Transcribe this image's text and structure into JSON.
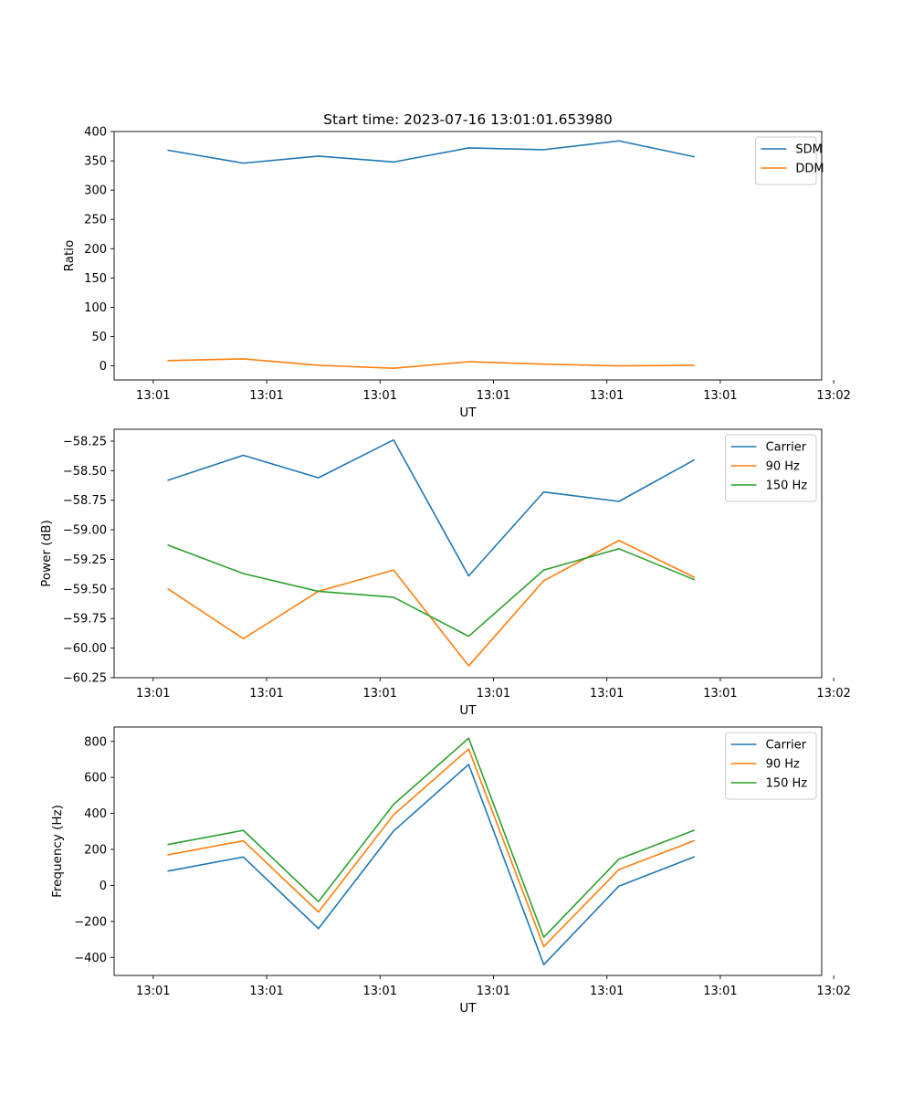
{
  "figure": {
    "title": "Start time: 2023-07-16 13:01:01.653980"
  },
  "chart_data": [
    {
      "type": "line",
      "title": "Start time: 2023-07-16 13:01:01.653980",
      "xlabel": "UT",
      "ylabel": "Ratio",
      "x_tick_labels": [
        "13:01",
        "13:01",
        "13:01",
        "13:01",
        "13:01",
        "13:01",
        "13:02"
      ],
      "y_ticks": [
        0,
        50,
        100,
        150,
        200,
        250,
        300,
        350,
        400
      ],
      "y_tick_labels": [
        "0",
        "50",
        "100",
        "150",
        "200",
        "250",
        "300",
        "350",
        "400"
      ],
      "ylim": [
        -24,
        400
      ],
      "xlim": [
        -0.72,
        8.7
      ],
      "x": [
        0,
        1,
        2,
        3,
        4,
        5,
        6,
        7
      ],
      "series": [
        {
          "name": "SDM",
          "color": "#1f77b4",
          "values": [
            368,
            346,
            358,
            348,
            372,
            369,
            384,
            357
          ]
        },
        {
          "name": "DDM",
          "color": "#ff7f0e",
          "values": [
            9,
            12,
            1,
            -4,
            7,
            3,
            0,
            1
          ]
        }
      ],
      "legend": "top-right"
    },
    {
      "type": "line",
      "xlabel": "UT",
      "ylabel": "Power (dB)",
      "x_tick_labels": [
        "13:01",
        "13:01",
        "13:01",
        "13:01",
        "13:01",
        "13:01",
        "13:02"
      ],
      "y_ticks": [
        -60.25,
        -60.0,
        -59.75,
        -59.5,
        -59.25,
        -59.0,
        -58.75,
        -58.5,
        -58.25
      ],
      "y_tick_labels": [
        "−60.25",
        "−60.00",
        "−59.75",
        "−59.50",
        "−59.25",
        "−59.00",
        "−58.75",
        "−58.50",
        "−58.25"
      ],
      "ylim": [
        -60.25,
        -58.15
      ],
      "xlim": [
        -0.72,
        8.7
      ],
      "x": [
        0,
        1,
        2,
        3,
        4,
        5,
        6,
        7
      ],
      "series": [
        {
          "name": "Carrier",
          "color": "#1f77b4",
          "values": [
            -58.58,
            -58.37,
            -58.56,
            -58.24,
            -59.39,
            -58.68,
            -58.76,
            -58.41
          ]
        },
        {
          "name": "90 Hz",
          "color": "#ff7f0e",
          "values": [
            -59.5,
            -59.92,
            -59.52,
            -59.34,
            -60.15,
            -59.43,
            -59.09,
            -59.4
          ]
        },
        {
          "name": "150 Hz",
          "color": "#2ca02c",
          "values": [
            -59.13,
            -59.37,
            -59.52,
            -59.57,
            -59.9,
            -59.34,
            -59.16,
            -59.42
          ]
        }
      ],
      "legend": "top-right"
    },
    {
      "type": "line",
      "xlabel": "UT",
      "ylabel": "Frequency (Hz)",
      "x_tick_labels": [
        "13:01",
        "13:01",
        "13:01",
        "13:01",
        "13:01",
        "13:01",
        "13:02"
      ],
      "y_ticks": [
        -400,
        -200,
        0,
        200,
        400,
        600,
        800
      ],
      "y_tick_labels": [
        "−400",
        "−200",
        "0",
        "200",
        "400",
        "600",
        "800"
      ],
      "ylim": [
        -500,
        880
      ],
      "xlim": [
        -0.72,
        8.7
      ],
      "x": [
        0,
        1,
        2,
        3,
        4,
        5,
        6,
        7
      ],
      "series": [
        {
          "name": "Carrier",
          "color": "#1f77b4",
          "values": [
            80,
            158,
            -240,
            302,
            672,
            -440,
            -4,
            158
          ]
        },
        {
          "name": "90 Hz",
          "color": "#ff7f0e",
          "values": [
            170,
            248,
            -148,
            392,
            758,
            -340,
            88,
            248
          ]
        },
        {
          "name": "150 Hz",
          "color": "#2ca02c",
          "values": [
            228,
            306,
            -90,
            450,
            818,
            -288,
            146,
            306
          ]
        }
      ],
      "legend": "top-right"
    }
  ]
}
